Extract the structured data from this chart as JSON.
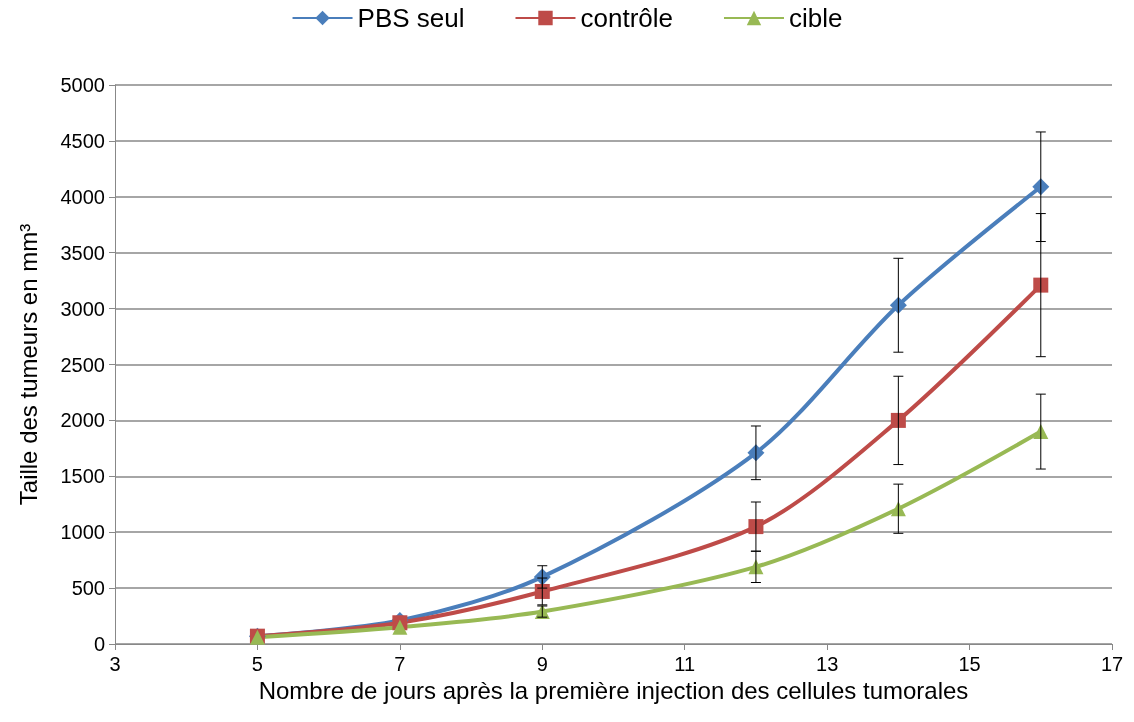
{
  "chart_data": {
    "type": "line",
    "xlabel": "Nombre de jours après la première injection des cellules tumorales",
    "ylabel": "Taille des tumeurs en mm³",
    "x": [
      5,
      7,
      9,
      12,
      14,
      16
    ],
    "xlim": [
      3,
      17
    ],
    "xticks": [
      3,
      5,
      7,
      9,
      11,
      13,
      15,
      17
    ],
    "ylim": [
      0,
      5000
    ],
    "yticks": [
      0,
      500,
      1000,
      1500,
      2000,
      2500,
      3000,
      3500,
      4000,
      4500,
      5000
    ],
    "grid": "y",
    "legend": "top",
    "series": [
      {
        "name": "PBS seul",
        "color": "#4a7ebb",
        "marker": "diamond",
        "values": [
          70,
          210,
          600,
          1710,
          3030,
          4090
        ],
        "errors": [
          null,
          null,
          100,
          240,
          420,
          490
        ]
      },
      {
        "name": "contrôle",
        "color": "#be4b48",
        "marker": "square",
        "values": [
          70,
          190,
          470,
          1050,
          2000,
          3210
        ],
        "errors": [
          null,
          null,
          120,
          220,
          395,
          640
        ]
      },
      {
        "name": "cible",
        "color": "#98b954",
        "marker": "triangle",
        "values": [
          60,
          150,
          290,
          690,
          1210,
          1900
        ],
        "errors": [
          null,
          null,
          50,
          140,
          220,
          335
        ]
      }
    ]
  }
}
